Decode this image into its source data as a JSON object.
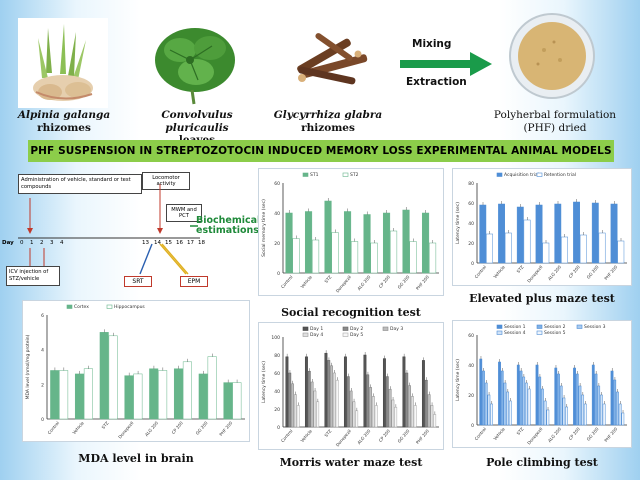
{
  "plants": [
    {
      "name": "Alpinia galanga",
      "part": "rhizomes"
    },
    {
      "name": "Convolvulus pluricaulis",
      "part": "leaves"
    },
    {
      "name": "Glycyrrhiza glabra",
      "part": "rhizomes"
    }
  ],
  "process": {
    "step1": "Mixing",
    "step2": "Extraction"
  },
  "product": {
    "line1": "Polyherbal formulation",
    "line2": "(PHF) dried"
  },
  "banner": "PHF SUSPENSION IN STREPTOZOTOCIN INDUCED MEMORY LOSS EXPERIMENTAL ANIMAL MODELS",
  "timeline": {
    "admin_box": "Administration of vehicle, standard or test compounds",
    "loco_box": "Locomotor activity",
    "mwm_box": "MWM and PCT",
    "biochem": "Biochemical estimations",
    "day_label": "Day",
    "days": [
      "0",
      "1",
      "2",
      "3",
      "4",
      "",
      "13",
      "14",
      "15",
      "16",
      "17",
      "18"
    ],
    "icv_box": "ICV injection of STZ/vehicle",
    "srt": "SRT",
    "epm": "EPM"
  },
  "captions": {
    "social": "Social recognition test",
    "epm": "Elevated plus maze test",
    "mda": "MDA level in brain",
    "mwm": "Morris water maze test",
    "pole": "Pole climbing test"
  },
  "colors": {
    "banner": "#8ccd4a",
    "green": "#66b58a",
    "blue": "#4f8ed6",
    "gray": "#777777",
    "pink": "#e8a6a6"
  },
  "chart_data": [
    {
      "type": "bar",
      "name": "social",
      "categories": [
        "Control",
        "Vehicle",
        "STZ",
        "Donepezil",
        "ALG 200",
        "CP 200",
        "GG 200",
        "PHF 200"
      ],
      "series": [
        {
          "name": "ST1",
          "values": [
            40,
            41,
            48,
            41,
            39,
            40,
            42,
            40
          ]
        },
        {
          "name": "ST2",
          "values": [
            23,
            22,
            27,
            21,
            20,
            28,
            21,
            20
          ]
        }
      ],
      "ylabel": "Social memory time (sec)",
      "ylim": [
        0,
        60
      ],
      "ticks": [
        "0",
        "20",
        "40",
        "60"
      ]
    },
    {
      "type": "bar",
      "name": "epm",
      "categories": [
        "Control",
        "Vehicle",
        "STZ",
        "Donepezil",
        "ALG 200",
        "CP 200",
        "GG 200",
        "PHF 200"
      ],
      "series": [
        {
          "name": "Acquisition trial",
          "values": [
            58,
            59,
            56,
            58,
            59,
            61,
            60,
            59
          ]
        },
        {
          "name": "Retention trial",
          "values": [
            29,
            30,
            43,
            20,
            26,
            28,
            30,
            22
          ]
        }
      ],
      "ylabel": "Latency time (sec)",
      "ylim": [
        0,
        80
      ],
      "ticks": [
        "0",
        "20",
        "40",
        "60",
        "80"
      ]
    },
    {
      "type": "bar",
      "name": "mda",
      "categories": [
        "Control",
        "Vehicle",
        "STZ",
        "Donepezil",
        "ALG 200",
        "CP 200",
        "GG 200",
        "PHF 200"
      ],
      "series": [
        {
          "name": "Cortex",
          "values": [
            2.8,
            2.6,
            5.0,
            2.5,
            2.9,
            2.9,
            2.6,
            2.1
          ]
        },
        {
          "name": "Hippocampus",
          "values": [
            2.8,
            2.9,
            4.8,
            2.6,
            2.8,
            3.3,
            3.6,
            2.1
          ]
        }
      ],
      "ylabel": "MDA level (nmol/mg protein)",
      "ylim": [
        0,
        6
      ],
      "ticks": [
        "0",
        "2",
        "4",
        "6"
      ]
    },
    {
      "type": "bar",
      "name": "mwm",
      "categories": [
        "Control",
        "Vehicle",
        "STZ",
        "Donepezil",
        "ALG 200",
        "CP 200",
        "GG 200",
        "PHF 200"
      ],
      "series": [
        {
          "name": "Day 1",
          "values": [
            78,
            78,
            82,
            78,
            80,
            76,
            78,
            74
          ]
        },
        {
          "name": "Day 2",
          "values": [
            60,
            62,
            74,
            56,
            58,
            56,
            60,
            52
          ]
        },
        {
          "name": "Day 3",
          "values": [
            48,
            50,
            68,
            40,
            44,
            42,
            46,
            36
          ]
        },
        {
          "name": "Day 4",
          "values": [
            36,
            40,
            60,
            28,
            34,
            30,
            34,
            24
          ]
        },
        {
          "name": "Day 5",
          "values": [
            24,
            28,
            52,
            18,
            24,
            22,
            24,
            14
          ]
        }
      ],
      "ylabel": "Latency time (sec)",
      "ylim": [
        0,
        100
      ],
      "ticks": [
        "0",
        "20",
        "40",
        "60",
        "80",
        "100"
      ]
    },
    {
      "type": "bar",
      "name": "pole",
      "categories": [
        "Control",
        "Vehicle",
        "STZ",
        "Donepezil",
        "ALG 200",
        "CP 200",
        "GG 200",
        "PHF 200"
      ],
      "series": [
        {
          "name": "Session 1",
          "values": [
            44,
            42,
            40,
            40,
            38,
            38,
            40,
            36
          ]
        },
        {
          "name": "Session 2",
          "values": [
            36,
            36,
            36,
            32,
            34,
            34,
            34,
            30
          ]
        },
        {
          "name": "Session 3",
          "values": [
            28,
            28,
            32,
            24,
            26,
            26,
            26,
            22
          ]
        },
        {
          "name": "Session 4",
          "values": [
            20,
            22,
            28,
            16,
            18,
            20,
            20,
            14
          ]
        },
        {
          "name": "Session 5",
          "values": [
            14,
            16,
            24,
            10,
            12,
            14,
            14,
            8
          ]
        }
      ],
      "ylabel": "Latency time (sec)",
      "ylim": [
        0,
        60
      ],
      "ticks": [
        "0",
        "20",
        "40",
        "60"
      ]
    }
  ]
}
